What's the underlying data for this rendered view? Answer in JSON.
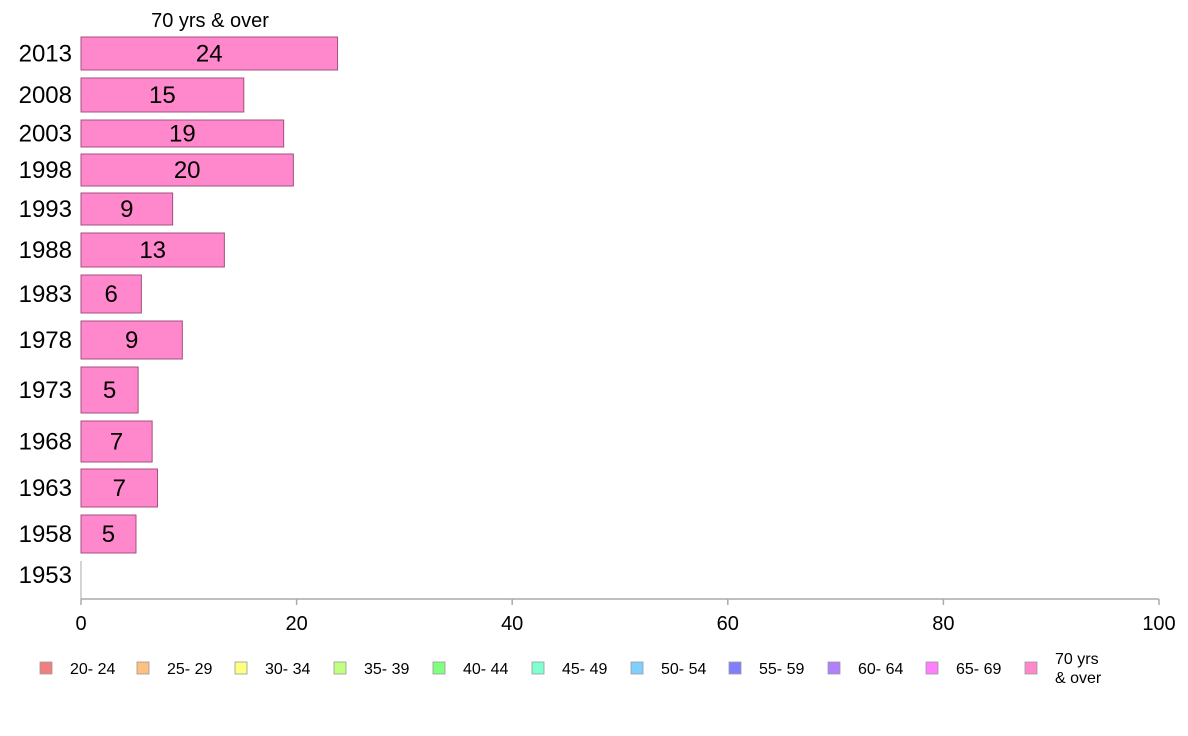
{
  "chart_data": {
    "type": "bar",
    "orientation": "horizontal",
    "title": "70 yrs & over",
    "categories": [
      "2013",
      "2008",
      "2003",
      "1998",
      "1993",
      "1988",
      "1983",
      "1978",
      "1973",
      "1968",
      "1963",
      "1958",
      "1953"
    ],
    "series": [
      {
        "name": "70 yrs & over",
        "values": [
          23.8,
          15.1,
          18.8,
          19.7,
          8.5,
          13.3,
          5.6,
          9.4,
          5.3,
          6.6,
          7.1,
          5.1,
          0
        ],
        "labels": [
          "24",
          "15",
          "19",
          "20",
          "9",
          "13",
          "6",
          "9",
          "5",
          "7",
          "7",
          "5",
          ""
        ]
      }
    ],
    "xlim": [
      0,
      100
    ],
    "xticks": [
      "0",
      "20",
      "40",
      "60",
      "80",
      "100"
    ],
    "legend": {
      "position": "bottom",
      "items": [
        {
          "label": "20- 24",
          "color": "#f08080"
        },
        {
          "label": "25- 29",
          "color": "#ffc080"
        },
        {
          "label": "30- 34",
          "color": "#ffff80"
        },
        {
          "label": "35- 39",
          "color": "#c0ff80"
        },
        {
          "label": "40- 44",
          "color": "#80ff80"
        },
        {
          "label": "45- 49",
          "color": "#80ffd0"
        },
        {
          "label": "50- 54",
          "color": "#80d0ff"
        },
        {
          "label": "55- 59",
          "color": "#8080ff"
        },
        {
          "label": "60- 64",
          "color": "#b080ff"
        },
        {
          "label": "65- 69",
          "color": "#ff80ff"
        },
        {
          "label": "70 yrs & over",
          "color": "#ff88cc"
        }
      ]
    },
    "bar_color": "#ff88cc",
    "bar_stroke": "#a05080",
    "axis_color": "#aaaaaa"
  }
}
